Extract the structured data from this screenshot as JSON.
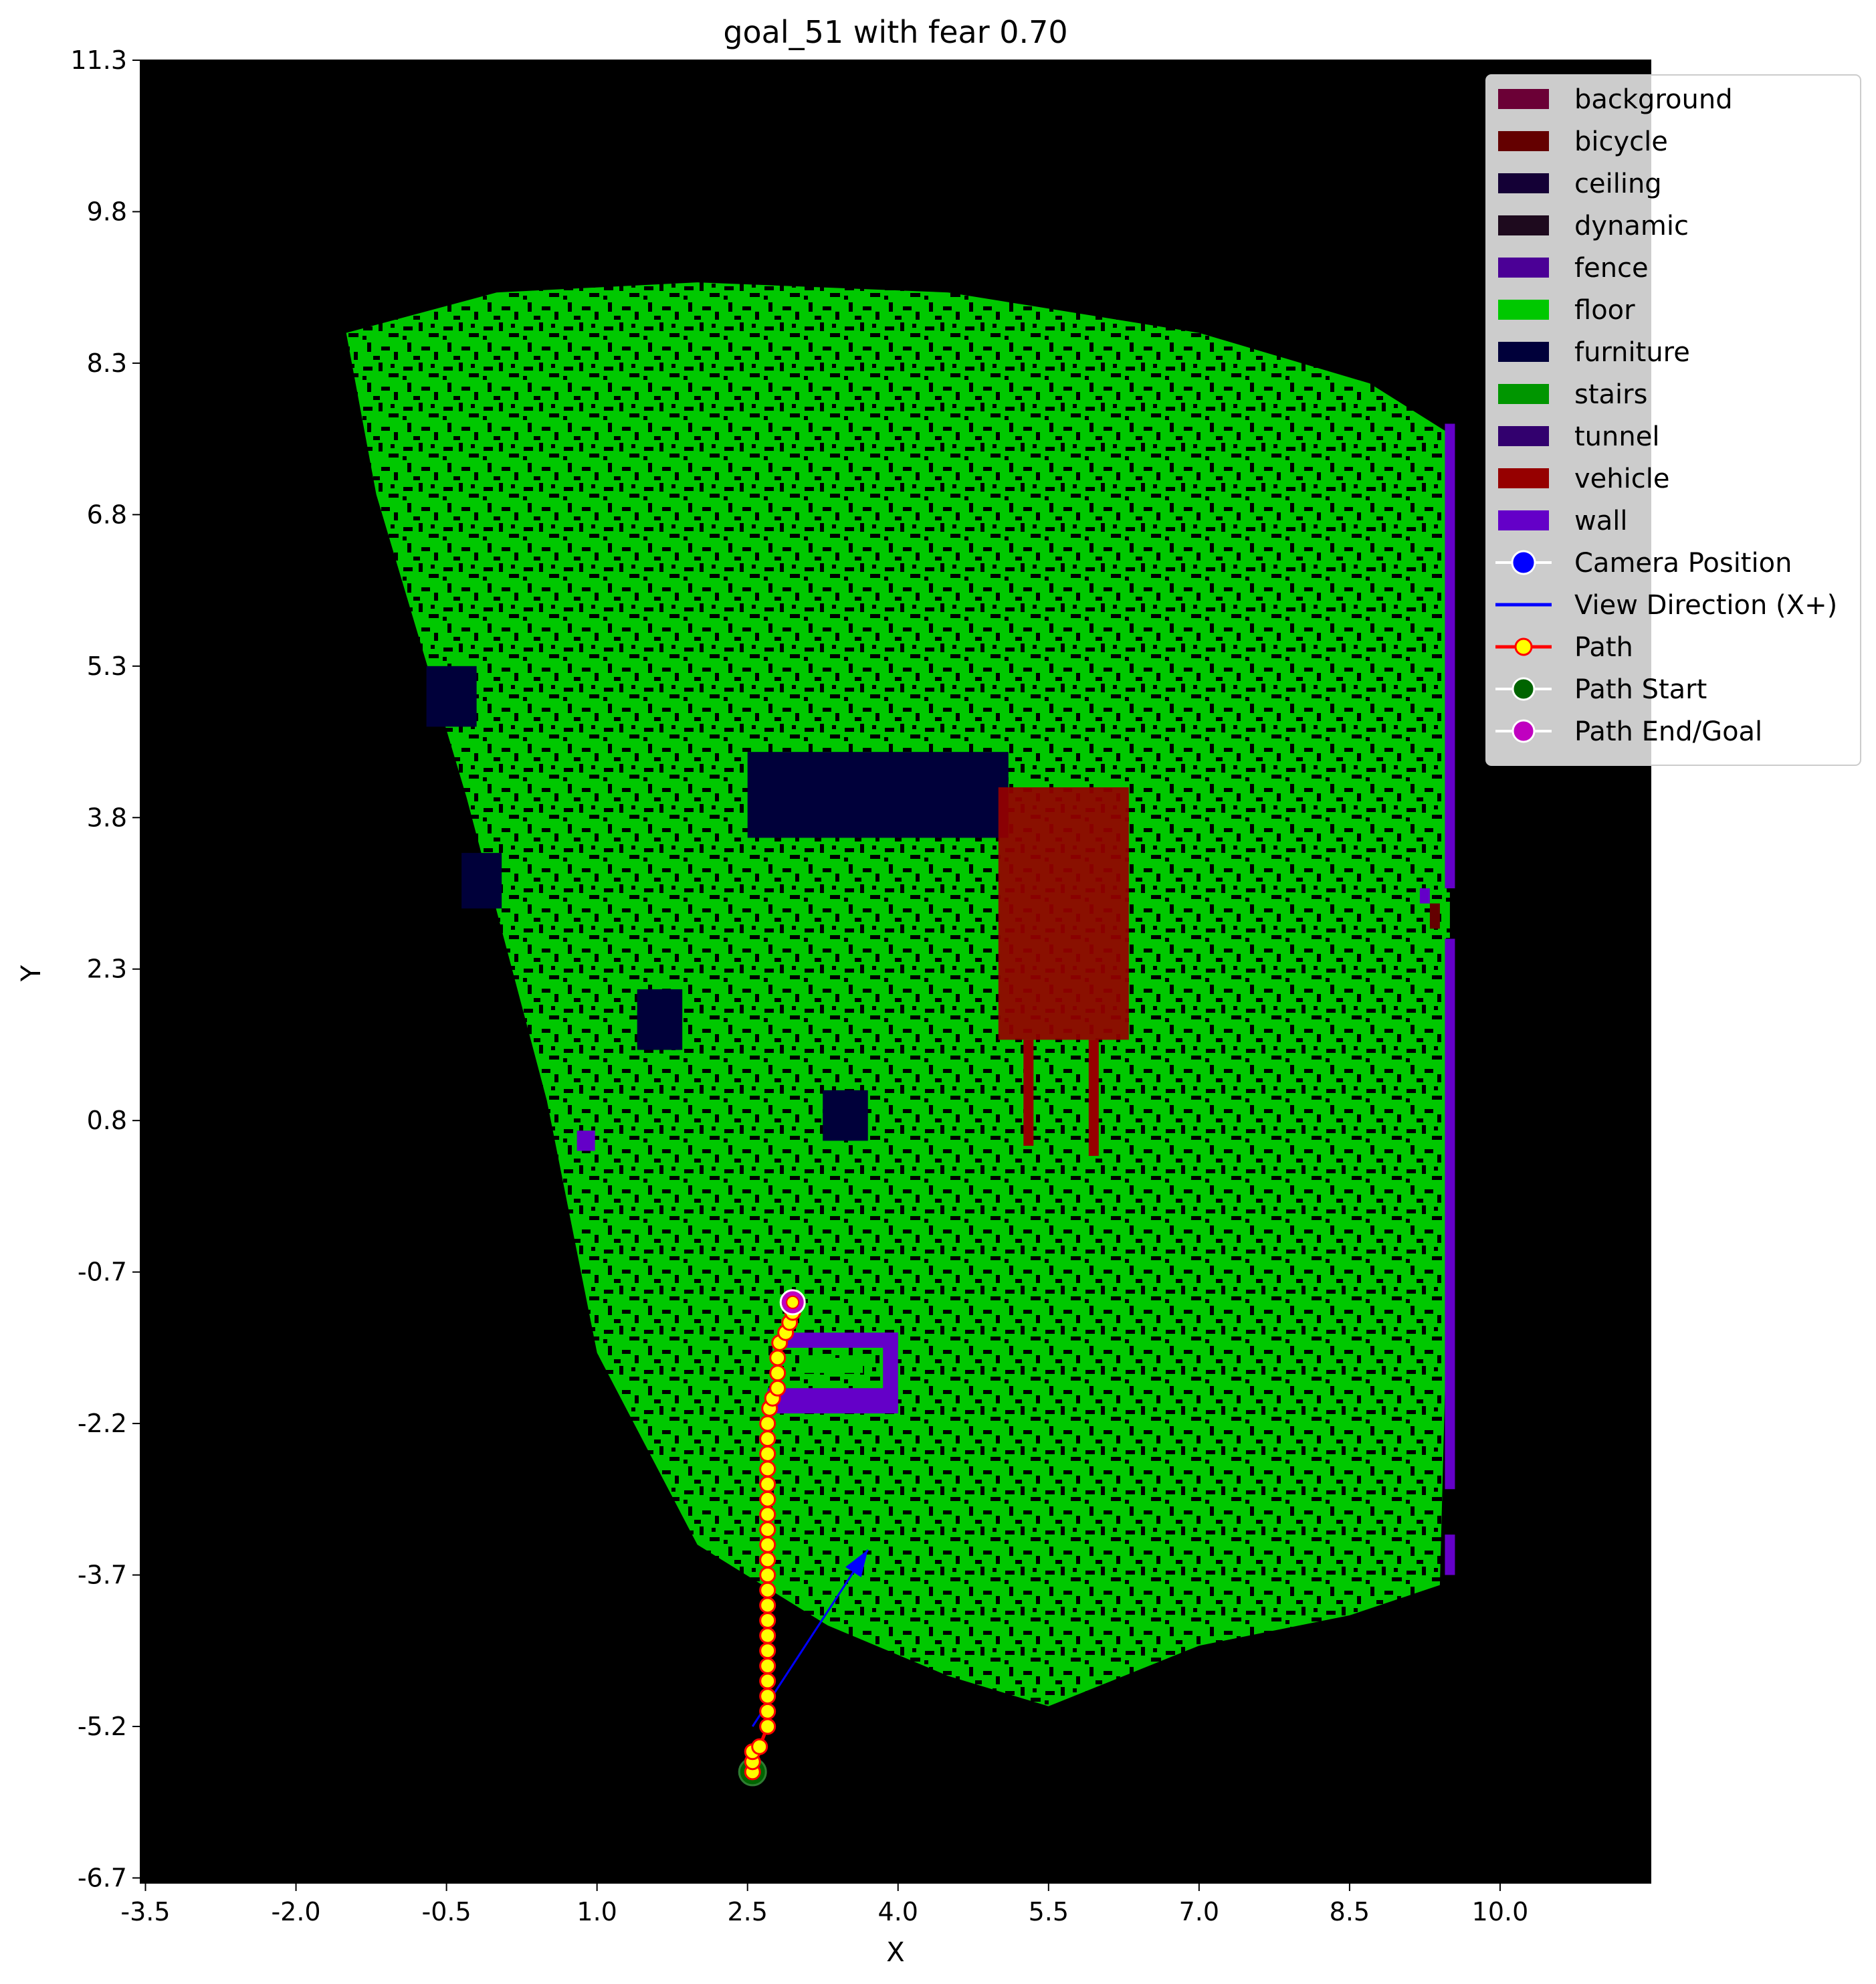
{
  "chart_data": {
    "type": "heatmap",
    "title": "goal_51 with fear 0.70",
    "xlabel": "X",
    "ylabel": "Y",
    "xlim": [
      -3.55,
      11.5
    ],
    "ylim": [
      -6.75,
      11.3
    ],
    "xticks": [
      "-3.5",
      "-2.0",
      "-0.5",
      "1.0",
      "2.5",
      "4.0",
      "5.5",
      "7.0",
      "8.5",
      "10.0"
    ],
    "yticks": [
      "11.3",
      "9.8",
      "8.3",
      "6.8",
      "5.3",
      "3.8",
      "2.3",
      "0.8",
      "-0.7",
      "-2.2",
      "-3.7",
      "-5.2",
      "-6.7"
    ],
    "legend_position": "top-right",
    "background_color": "#000000",
    "categories": [
      {
        "name": "background",
        "color": "#6b0036"
      },
      {
        "name": "bicycle",
        "color": "#640000"
      },
      {
        "name": "ceiling",
        "color": "#140036"
      },
      {
        "name": "dynamic",
        "color": "#1e0a1e"
      },
      {
        "name": "fence",
        "color": "#4b0096"
      },
      {
        "name": "floor",
        "color": "#00c800"
      },
      {
        "name": "furniture",
        "color": "#00003a"
      },
      {
        "name": "stairs",
        "color": "#009600"
      },
      {
        "name": "tunnel",
        "color": "#32006e"
      },
      {
        "name": "vehicle",
        "color": "#960000"
      },
      {
        "name": "wall",
        "color": "#6400c8"
      }
    ],
    "floor_region": [
      [
        -1.5,
        8.6
      ],
      [
        0.0,
        9.0
      ],
      [
        2.0,
        9.1
      ],
      [
        4.5,
        9.0
      ],
      [
        7.0,
        8.6
      ],
      [
        8.7,
        8.1
      ],
      [
        9.5,
        7.6
      ],
      [
        9.5,
        0.0
      ],
      [
        9.4,
        -3.8
      ],
      [
        8.5,
        -4.1
      ],
      [
        7.0,
        -4.4
      ],
      [
        5.5,
        -5.0
      ],
      [
        4.5,
        -4.7
      ],
      [
        3.3,
        -4.2
      ],
      [
        2.0,
        -3.4
      ],
      [
        1.0,
        -1.5
      ],
      [
        0.5,
        1.0
      ],
      [
        -0.3,
        4.0
      ],
      [
        -1.2,
        7.0
      ],
      [
        -1.5,
        8.6
      ]
    ],
    "regions": [
      {
        "label": "furniture",
        "rect": [
          -0.7,
          4.7,
          -0.2,
          5.3
        ]
      },
      {
        "label": "furniture",
        "rect": [
          -0.35,
          2.9,
          0.05,
          3.45
        ]
      },
      {
        "label": "furniture",
        "rect": [
          2.5,
          3.6,
          5.1,
          4.45
        ]
      },
      {
        "label": "furniture",
        "rect": [
          1.4,
          1.5,
          1.85,
          2.1
        ]
      },
      {
        "label": "furniture",
        "rect": [
          3.25,
          0.6,
          3.7,
          1.1
        ]
      },
      {
        "label": "vehicle",
        "rect": [
          5.0,
          1.6,
          6.3,
          4.1
        ]
      },
      {
        "label": "vehicle",
        "rect": [
          5.25,
          0.55,
          5.35,
          1.6
        ]
      },
      {
        "label": "vehicle",
        "rect": [
          5.9,
          0.45,
          6.0,
          1.6
        ]
      },
      {
        "label": "wall",
        "rect": [
          9.45,
          3.1,
          9.55,
          7.7
        ]
      },
      {
        "label": "wall",
        "rect": [
          9.45,
          -2.85,
          9.55,
          2.6
        ]
      },
      {
        "label": "wall",
        "rect": [
          9.45,
          -3.7,
          9.55,
          -3.3
        ]
      },
      {
        "label": "wall",
        "rect": [
          9.2,
          2.95,
          9.3,
          3.1
        ]
      },
      {
        "label": "bicycle",
        "rect": [
          9.3,
          2.7,
          9.4,
          2.95
        ]
      },
      {
        "label": "wall",
        "rect": [
          0.8,
          0.5,
          0.98,
          0.7
        ]
      },
      {
        "label": "wall",
        "rect": [
          2.85,
          -1.45,
          4.0,
          -1.3
        ]
      },
      {
        "label": "wall",
        "rect": [
          2.7,
          -2.1,
          4.0,
          -1.85
        ]
      },
      {
        "label": "wall",
        "rect": [
          3.85,
          -2.1,
          4.0,
          -1.3
        ]
      },
      {
        "label": "floor",
        "rect": [
          3.05,
          -1.7,
          3.65,
          -1.55
        ]
      }
    ],
    "camera_position": [
      2.55,
      -5.2
    ],
    "view_direction_end": [
      3.7,
      -3.45
    ],
    "path": [
      [
        2.55,
        -5.65
      ],
      [
        2.55,
        -5.55
      ],
      [
        2.55,
        -5.45
      ],
      [
        2.62,
        -5.4
      ],
      [
        2.7,
        -5.2
      ],
      [
        2.7,
        -5.05
      ],
      [
        2.7,
        -4.9
      ],
      [
        2.7,
        -4.75
      ],
      [
        2.7,
        -4.6
      ],
      [
        2.7,
        -4.45
      ],
      [
        2.7,
        -4.3
      ],
      [
        2.7,
        -4.15
      ],
      [
        2.7,
        -4.0
      ],
      [
        2.7,
        -3.85
      ],
      [
        2.7,
        -3.7
      ],
      [
        2.7,
        -3.55
      ],
      [
        2.7,
        -3.4
      ],
      [
        2.7,
        -3.25
      ],
      [
        2.7,
        -3.1
      ],
      [
        2.7,
        -2.95
      ],
      [
        2.7,
        -2.8
      ],
      [
        2.7,
        -2.65
      ],
      [
        2.7,
        -2.5
      ],
      [
        2.7,
        -2.35
      ],
      [
        2.7,
        -2.2
      ],
      [
        2.72,
        -2.05
      ],
      [
        2.75,
        -1.95
      ],
      [
        2.8,
        -1.85
      ],
      [
        2.8,
        -1.7
      ],
      [
        2.8,
        -1.55
      ],
      [
        2.82,
        -1.4
      ],
      [
        2.88,
        -1.3
      ],
      [
        2.92,
        -1.2
      ],
      [
        2.95,
        -1.1
      ],
      [
        2.95,
        -1.0
      ]
    ],
    "path_start": [
      2.55,
      -5.65
    ],
    "path_end": [
      2.95,
      -1.0
    ],
    "legend": [
      "background",
      "bicycle",
      "ceiling",
      "dynamic",
      "fence",
      "floor",
      "furniture",
      "stairs",
      "tunnel",
      "vehicle",
      "wall",
      "Camera Position",
      "View Direction (X+)",
      "Path",
      "Path Start",
      "Path End/Goal"
    ]
  }
}
